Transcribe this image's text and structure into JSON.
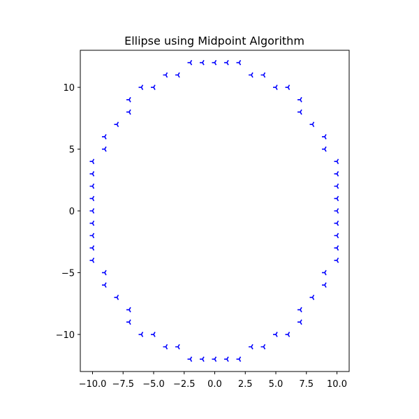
{
  "chart_data": {
    "type": "scatter",
    "title": "Ellipse using Midpoint Algorithm",
    "xlabel": "",
    "ylabel": "",
    "xlim": [
      -11,
      11
    ],
    "ylim": [
      -13,
      13
    ],
    "grid": false,
    "marker": "tri_left",
    "color": "#0000ff",
    "xticks": [
      -10.0,
      -7.5,
      -5.0,
      -2.5,
      0.0,
      2.5,
      5.0,
      7.5,
      10.0
    ],
    "xtick_labels": [
      "−10.0",
      "−7.5",
      "−5.0",
      "−2.5",
      "0.0",
      "2.5",
      "5.0",
      "7.5",
      "10.0"
    ],
    "yticks": [
      -10,
      -5,
      0,
      5,
      10
    ],
    "ytick_labels": [
      "−10",
      "−5",
      "0",
      "5",
      "10"
    ],
    "points": [
      [
        0,
        12
      ],
      [
        1,
        12
      ],
      [
        2,
        12
      ],
      [
        3,
        11
      ],
      [
        4,
        11
      ],
      [
        5,
        10
      ],
      [
        6,
        10
      ],
      [
        7,
        9
      ],
      [
        7,
        8
      ],
      [
        8,
        7
      ],
      [
        9,
        6
      ],
      [
        9,
        5
      ],
      [
        10,
        4
      ],
      [
        10,
        3
      ],
      [
        10,
        2
      ],
      [
        10,
        1
      ],
      [
        10,
        0
      ],
      [
        -1,
        12
      ],
      [
        -2,
        12
      ],
      [
        -3,
        11
      ],
      [
        -4,
        11
      ],
      [
        -5,
        10
      ],
      [
        -6,
        10
      ],
      [
        -7,
        9
      ],
      [
        -7,
        8
      ],
      [
        -8,
        7
      ],
      [
        -9,
        6
      ],
      [
        -9,
        5
      ],
      [
        -10,
        4
      ],
      [
        -10,
        3
      ],
      [
        -10,
        2
      ],
      [
        -10,
        1
      ],
      [
        -10,
        0
      ],
      [
        0,
        -12
      ],
      [
        1,
        -12
      ],
      [
        2,
        -12
      ],
      [
        3,
        -11
      ],
      [
        4,
        -11
      ],
      [
        5,
        -10
      ],
      [
        6,
        -10
      ],
      [
        7,
        -9
      ],
      [
        7,
        -8
      ],
      [
        8,
        -7
      ],
      [
        9,
        -6
      ],
      [
        9,
        -5
      ],
      [
        10,
        -4
      ],
      [
        10,
        -3
      ],
      [
        10,
        -2
      ],
      [
        10,
        -1
      ],
      [
        -1,
        -12
      ],
      [
        -2,
        -12
      ],
      [
        -3,
        -11
      ],
      [
        -4,
        -11
      ],
      [
        -5,
        -10
      ],
      [
        -6,
        -10
      ],
      [
        -7,
        -9
      ],
      [
        -7,
        -8
      ],
      [
        -8,
        -7
      ],
      [
        -9,
        -6
      ],
      [
        -9,
        -5
      ],
      [
        -10,
        -4
      ],
      [
        -10,
        -3
      ],
      [
        -10,
        -2
      ],
      [
        -10,
        -1
      ]
    ]
  }
}
